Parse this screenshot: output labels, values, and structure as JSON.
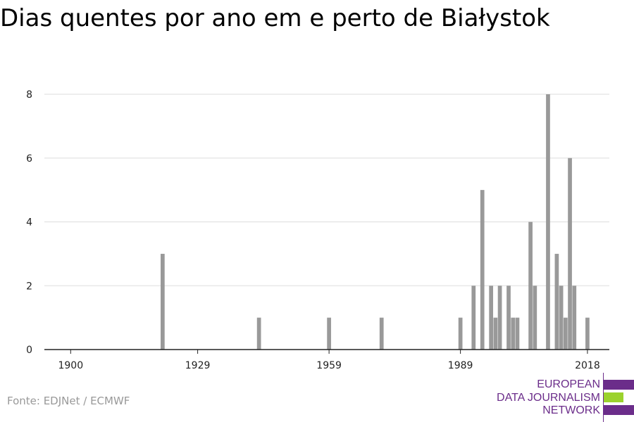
{
  "title": "Dias quentes por ano em e perto de Białystok",
  "source": "Fonte: EDJNet / ECMWF",
  "logo": {
    "lines": [
      "EUROPEAN",
      "DATA JOURNALISM",
      "NETWORK"
    ],
    "colors": {
      "purple": "#6b2d8a",
      "green": "#9bd22d"
    }
  },
  "colors": {
    "bar": "#999999",
    "grid": "#dddddd",
    "axis": "#222222"
  },
  "chart_data": {
    "type": "bar",
    "title": "Dias quentes por ano em e perto de Białystok",
    "xlabel": "",
    "ylabel": "",
    "xlim": [
      1894,
      2023
    ],
    "ylim": [
      0,
      8
    ],
    "x_ticks": [
      1900,
      1929,
      1959,
      1989,
      2018
    ],
    "y_ticks": [
      0,
      2,
      4,
      6,
      8
    ],
    "grid": true,
    "x": [
      1921,
      1943,
      1959,
      1971,
      1989,
      1992,
      1994,
      1996,
      1997,
      1998,
      2000,
      2001,
      2002,
      2005,
      2006,
      2009,
      2011,
      2012,
      2013,
      2014,
      2015,
      2016,
      2018
    ],
    "values": [
      3,
      1,
      1,
      1,
      1,
      2,
      5,
      2,
      1,
      2,
      2,
      1,
      1,
      4,
      2,
      8,
      3,
      2,
      1,
      6,
      2,
      0,
      1
    ]
  }
}
